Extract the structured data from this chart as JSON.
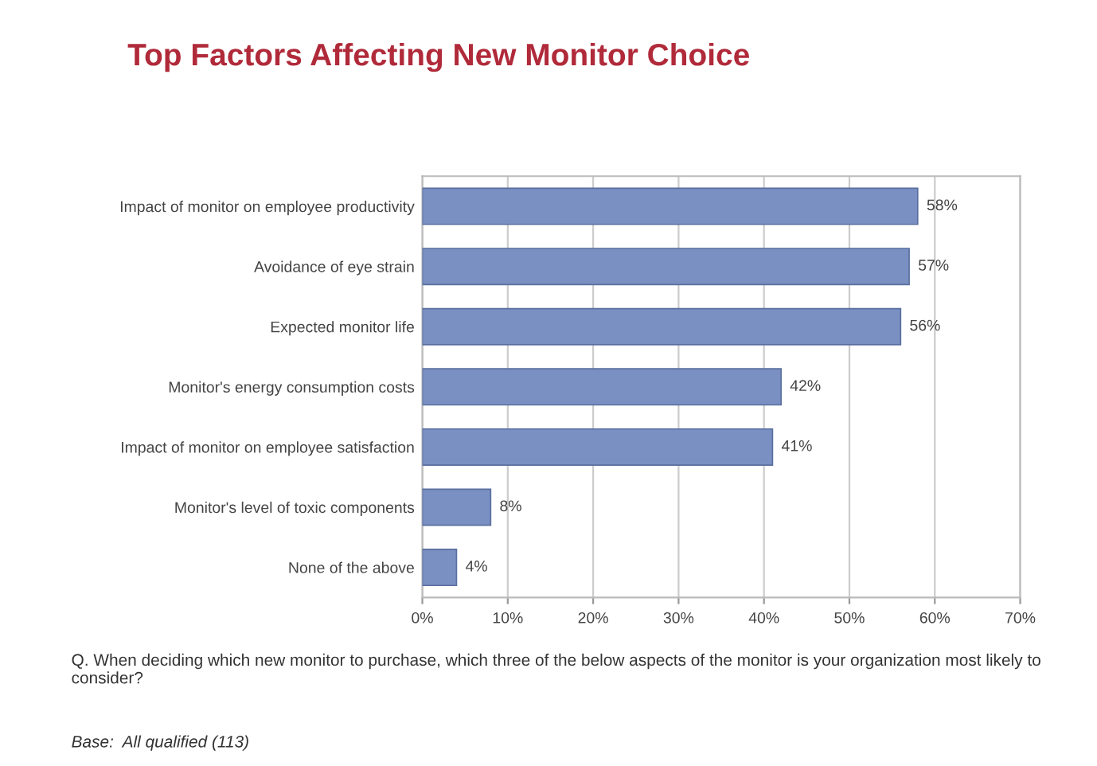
{
  "chart_data": {
    "type": "bar",
    "orientation": "horizontal",
    "title": "Top Factors Affecting New Monitor Choice",
    "categories": [
      "Impact of monitor on employee productivity",
      "Avoidance of eye strain",
      "Expected monitor life",
      "Monitor's energy consumption costs",
      "Impact of monitor on employee satisfaction",
      "Monitor's level of toxic components",
      "None of the above"
    ],
    "values": [
      58,
      57,
      56,
      42,
      41,
      8,
      4
    ],
    "value_labels": [
      "58%",
      "57%",
      "56%",
      "42%",
      "41%",
      "8%",
      "4%"
    ],
    "color": "#7b90c2",
    "xlim": [
      0,
      70
    ],
    "xticks": [
      {
        "value": 0,
        "label": "0%"
      },
      {
        "value": 10,
        "label": "10%"
      },
      {
        "value": 20,
        "label": "20%"
      },
      {
        "value": 30,
        "label": "30%"
      },
      {
        "value": 40,
        "label": "40%"
      },
      {
        "value": 50,
        "label": "50%"
      },
      {
        "value": 60,
        "label": "60%"
      },
      {
        "value": 70,
        "label": "70%"
      }
    ],
    "grid": "x",
    "annotations": [
      "Q. When deciding which new monitor to purchase, which three of the below aspects of the monitor is your organization most likely to consider?",
      "Base:  All qualified (113)"
    ]
  }
}
